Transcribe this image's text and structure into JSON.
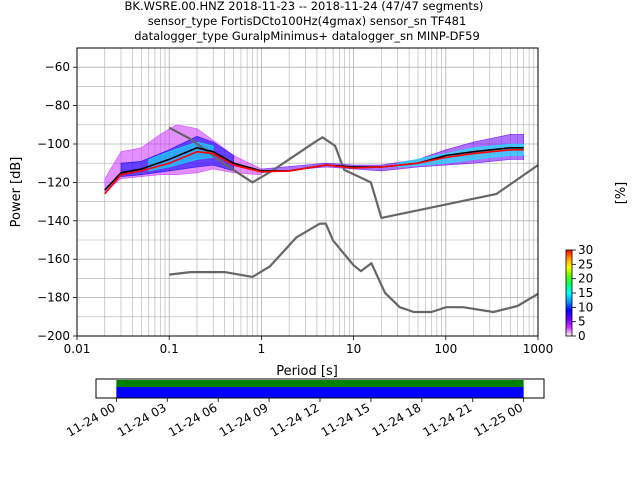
{
  "title": {
    "line1": "BK.WSRE.00.HNZ   2018-11-23 -- 2018-11-24  (47/47 segments)",
    "line2": "sensor_type FortisDCto100Hz(4gmax) sensor_sn TF481",
    "line3": "datalogger_type GuralpMinimus+ datalogger_sn MINP-DF59"
  },
  "chart_data": [
    {
      "type": "heatmap",
      "title": "BK.WSRE.00.HNZ   2018-11-23 -- 2018-11-24  (47/47 segments)",
      "xlabel": "Period [s]",
      "ylabel": "Power [dB]",
      "xscale": "log",
      "xlim": [
        0.01,
        1000
      ],
      "ylim": [
        -200,
        -50
      ],
      "grid": true,
      "x_ticks": [
        0.01,
        0.1,
        1,
        10,
        100,
        1000
      ],
      "x_tick_labels": [
        "0.01",
        "0.1",
        "1",
        "10",
        "100",
        "1000"
      ],
      "y_ticks": [
        -200,
        -180,
        -160,
        -140,
        -120,
        -100,
        -80,
        -60
      ],
      "y_tick_labels": [
        "−200",
        "−180",
        "−160",
        "−140",
        "−120",
        "−100",
        "−80",
        "−60"
      ],
      "colorbar": {
        "label": "[%]",
        "range": [
          0,
          30
        ],
        "ticks": [
          0,
          5,
          10,
          15,
          20,
          25,
          30
        ],
        "colors": [
          "#ffffff",
          "#cc33ff",
          "#6600ff",
          "#0000ff",
          "#0099ff",
          "#00ffff",
          "#00ff66",
          "#66ff00",
          "#ffff00",
          "#ff9900",
          "#ff0000"
        ]
      },
      "series": [
        {
          "role": "noise-model-high",
          "color": "#666666",
          "x": [
            0.1,
            0.17,
            0.4,
            0.8,
            1.3,
            3.8,
            4.6,
            6.3,
            7.9,
            15.4,
            20,
            354.8,
            1000
          ],
          "y": [
            -91.5,
            -97.4,
            -110.5,
            -120,
            -114,
            -99,
            -96.5,
            -101,
            -113.5,
            -120,
            -138.5,
            -126,
            -111
          ]
        },
        {
          "role": "noise-model-low",
          "color": "#666666",
          "x": [
            0.1,
            0.17,
            0.4,
            0.8,
            1.24,
            2.4,
            4.3,
            5,
            6,
            10,
            12,
            15.6,
            21.9,
            31.6,
            45,
            70,
            101,
            154,
            328,
            600,
            1000
          ],
          "y": [
            -168,
            -166.7,
            -166.7,
            -169.2,
            -163.7,
            -148.6,
            -141.5,
            -141.5,
            -150.3,
            -163.2,
            -166.2,
            -162.1,
            -177.5,
            -185,
            -187.5,
            -187.5,
            -185,
            -185,
            -187.5,
            -184.4,
            -178
          ]
        },
        {
          "role": "median",
          "color": "#000000",
          "x": [
            0.02,
            0.03,
            0.05,
            0.1,
            0.2,
            0.3,
            0.5,
            1,
            2,
            5,
            10,
            20,
            50,
            100,
            200,
            500,
            700
          ],
          "y": [
            -124,
            -115,
            -113,
            -108,
            -102,
            -104,
            -110,
            -114,
            -114,
            -111,
            -112,
            -112,
            -110,
            -106,
            -104,
            -102,
            -102
          ]
        },
        {
          "role": "mode",
          "color": "#ff0000",
          "x": [
            0.02,
            0.03,
            0.05,
            0.1,
            0.2,
            0.3,
            0.5,
            1,
            2,
            5,
            10,
            20,
            50,
            100,
            200,
            500,
            700
          ],
          "y": [
            -126,
            -116,
            -114,
            -110,
            -104,
            -105,
            -111,
            -114.5,
            -114,
            -111,
            -112.5,
            -112,
            -110,
            -107,
            -105,
            -103,
            -103
          ]
        }
      ],
      "density_bands": [
        {
          "x": [
            0.02,
            0.03,
            0.05,
            0.08,
            0.12,
            0.2,
            0.3,
            0.5,
            1
          ],
          "y_top": [
            -118,
            -104,
            -102,
            -95,
            -90,
            -92,
            -98,
            -106,
            -113
          ],
          "y_bottom": [
            -125,
            -118,
            -117,
            -116,
            -116,
            -115,
            -113,
            -115,
            -116
          ],
          "color": "#cc33ff"
        },
        {
          "x": [
            0.03,
            0.05,
            0.1,
            0.2,
            0.3,
            0.5
          ],
          "y_top": [
            -110,
            -109,
            -103,
            -96,
            -99,
            -106
          ],
          "y_bottom": [
            -117,
            -116,
            -114,
            -112,
            -111,
            -114
          ],
          "color": "#0000ff"
        },
        {
          "x": [
            0.06,
            0.1,
            0.2,
            0.3
          ],
          "y_top": [
            -108,
            -104,
            -99,
            -101
          ],
          "y_bottom": [
            -114,
            -112,
            -108,
            -107
          ],
          "color": "#00ffff"
        },
        {
          "x": [
            1,
            5,
            10,
            20,
            50,
            100,
            200,
            500,
            700
          ],
          "y_top": [
            -113,
            -110,
            -111,
            -111,
            -108,
            -103,
            -99,
            -95,
            -95
          ],
          "y_bottom": [
            -115,
            -112,
            -113,
            -114,
            -112,
            -111,
            -110,
            -108,
            -108
          ],
          "color": "#6600ff"
        },
        {
          "x": [
            30,
            100,
            200,
            500,
            700
          ],
          "y_top": [
            -110,
            -105,
            -102,
            -100,
            -100
          ],
          "y_bottom": [
            -112,
            -110,
            -108,
            -106,
            -106
          ],
          "color": "#00ffff"
        }
      ]
    },
    {
      "type": "bar",
      "role": "data-coverage",
      "x_tick_labels": [
        "11-24 00",
        "11-24 03",
        "11-24 06",
        "11-24 09",
        "11-24 12",
        "11-24 15",
        "11-24 18",
        "11-24 21",
        "11-25 00"
      ],
      "x_tick_hours": [
        0,
        3,
        6,
        9,
        12,
        15,
        18,
        21,
        24
      ],
      "xlim_hours": [
        -1.2,
        25.2
      ],
      "bars": [
        {
          "name": "data",
          "start_hour": 0,
          "end_hour": 24,
          "color": "#008000"
        },
        {
          "name": "used",
          "start_hour": 0,
          "end_hour": 24,
          "color": "#0000ff"
        }
      ]
    }
  ]
}
